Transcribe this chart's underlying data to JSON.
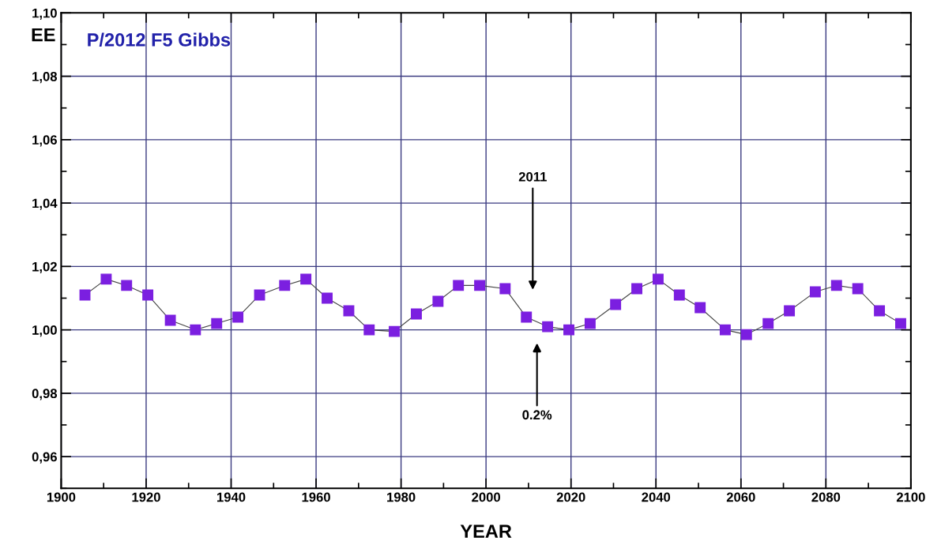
{
  "chart_data": {
    "type": "line",
    "title": "P/2012 F5 Gibbs",
    "xlabel": "YEAR",
    "ylabel": "EE",
    "x": [
      1905.6,
      1910.6,
      1915.4,
      1920.4,
      1925.7,
      1931.6,
      1936.6,
      1941.6,
      1946.7,
      1952.6,
      1957.6,
      1962.6,
      1967.7,
      1972.5,
      1978.4,
      1983.6,
      1988.7,
      1993.5,
      1998.5,
      2004.5,
      2009.5,
      2014.5,
      2019.5,
      2024.5,
      2030.5,
      2035.5,
      2040.5,
      2045.5,
      2050.4,
      2056.3,
      2061.3,
      2066.4,
      2071.4,
      2077.5,
      2082.5,
      2087.5,
      2092.6,
      2097.6
    ],
    "series": [
      {
        "color": "#7b1fe0",
        "values": [
          1.011,
          1.016,
          1.014,
          1.011,
          1.003,
          1.0,
          1.002,
          1.004,
          1.011,
          1.014,
          1.016,
          1.01,
          1.006,
          1.0,
          0.9995,
          1.005,
          1.009,
          1.014,
          1.014,
          1.013,
          1.004,
          1.001,
          1.0,
          1.002,
          1.008,
          1.013,
          1.016,
          1.011,
          1.007,
          1.0,
          0.9985,
          1.002,
          1.006,
          1.012,
          1.014,
          1.013,
          1.006,
          1.002
        ]
      }
    ],
    "marker": "square",
    "line_style": "solid",
    "grid": true,
    "xlim": [
      1900,
      2100
    ],
    "xticks": [
      1900,
      1920,
      1940,
      1960,
      1980,
      2000,
      2020,
      2040,
      2060,
      2080,
      2100
    ],
    "ylim": [
      0.95,
      1.1
    ],
    "yticks": [
      {
        "value": 0.96,
        "label": "0,96"
      },
      {
        "value": 0.98,
        "label": "0,98"
      },
      {
        "value": 1.0,
        "label": "1,00"
      },
      {
        "value": 1.02,
        "label": "1,02"
      },
      {
        "value": 1.04,
        "label": "1,04"
      },
      {
        "value": 1.06,
        "label": "1,06"
      },
      {
        "value": 1.08,
        "label": "1,08"
      },
      {
        "value": 1.1,
        "label": "1,10"
      }
    ],
    "annotations": [
      "2011",
      "0.2%"
    ]
  }
}
